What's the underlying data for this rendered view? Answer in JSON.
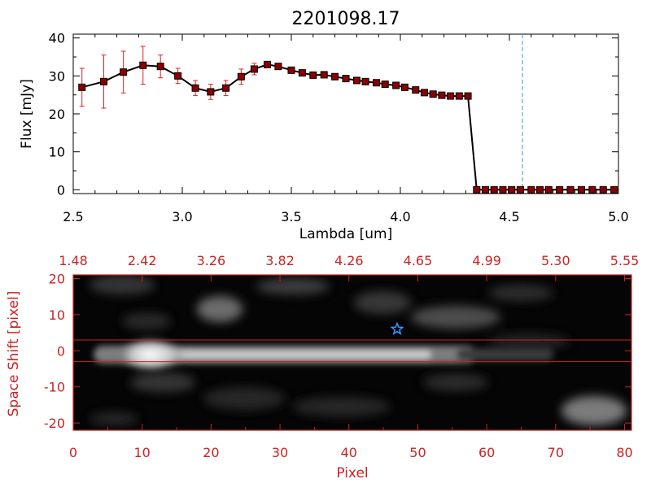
{
  "title": "2201098.17",
  "colors": {
    "line": "#000000",
    "marker": "#8b0000",
    "error": "#dd2222",
    "cutoff": "#3399cc",
    "axis2": "#cc2222",
    "star": "#3399ff"
  },
  "chart_data": [
    {
      "type": "line",
      "xlabel": "Lambda [um]",
      "ylabel": "Flux [mJy]",
      "xlim": [
        2.5,
        5.0
      ],
      "ylim": [
        -1,
        41
      ],
      "xticks": [
        "2.5",
        "3.0",
        "3.5",
        "4.0",
        "4.5",
        "5.0"
      ],
      "yticks": [
        "0",
        "10",
        "20",
        "30",
        "40"
      ],
      "cutoff_x": 4.56,
      "series": [
        {
          "x": [
            2.54,
            2.64,
            2.73,
            2.82,
            2.9,
            2.98,
            3.06,
            3.13,
            3.2,
            3.27,
            3.33,
            3.39,
            3.44,
            3.5,
            3.55,
            3.6,
            3.65,
            3.7,
            3.75,
            3.8,
            3.84,
            3.89,
            3.93,
            3.98,
            4.02,
            4.07,
            4.11,
            4.15,
            4.19,
            4.23,
            4.27,
            4.31,
            4.35,
            4.39,
            4.43,
            4.47,
            4.51,
            4.55,
            4.6,
            4.64,
            4.68,
            4.73,
            4.78,
            4.83,
            4.88,
            4.93,
            4.98
          ],
          "y": [
            27,
            28.5,
            31,
            32.8,
            32.5,
            30,
            26.8,
            25.8,
            26.8,
            29.8,
            31.8,
            33,
            32.5,
            31.5,
            30.8,
            30.2,
            30.3,
            29.8,
            29.3,
            28.8,
            28.5,
            28.2,
            27.8,
            27.5,
            27,
            26.3,
            25.6,
            25.2,
            24.9,
            24.7,
            24.7,
            24.7,
            0,
            0,
            0,
            0,
            0,
            0,
            0,
            0,
            0,
            0,
            0,
            0,
            0,
            0,
            0
          ],
          "err": [
            5,
            7,
            5.5,
            5,
            3,
            2,
            2,
            2,
            2,
            2,
            1.5,
            0,
            0,
            0,
            0,
            0,
            0,
            0,
            0,
            0,
            0,
            0,
            0,
            0,
            0,
            0,
            0,
            0,
            0,
            0,
            0,
            0,
            0,
            0,
            0,
            0,
            0,
            0,
            0,
            0,
            0,
            0,
            0,
            0,
            0,
            0,
            0
          ]
        }
      ]
    },
    {
      "type": "heatmap",
      "xlabel": "Pixel",
      "ylabel": "Space Shift [pixel]",
      "xlim": [
        0,
        81
      ],
      "ylim": [
        -22,
        21
      ],
      "xticks": [
        "0",
        "10",
        "20",
        "30",
        "40",
        "50",
        "60",
        "70",
        "80"
      ],
      "yticks": [
        "-20",
        "-10",
        "0",
        "10",
        "20"
      ],
      "top_ticks": [
        "1.48",
        "2.42",
        "3.26",
        "3.82",
        "4.26",
        "4.65",
        "4.99",
        "5.30",
        "5.55"
      ],
      "aperture_lines": [
        3,
        -3
      ],
      "star": {
        "x": 47,
        "y": 6
      }
    }
  ]
}
